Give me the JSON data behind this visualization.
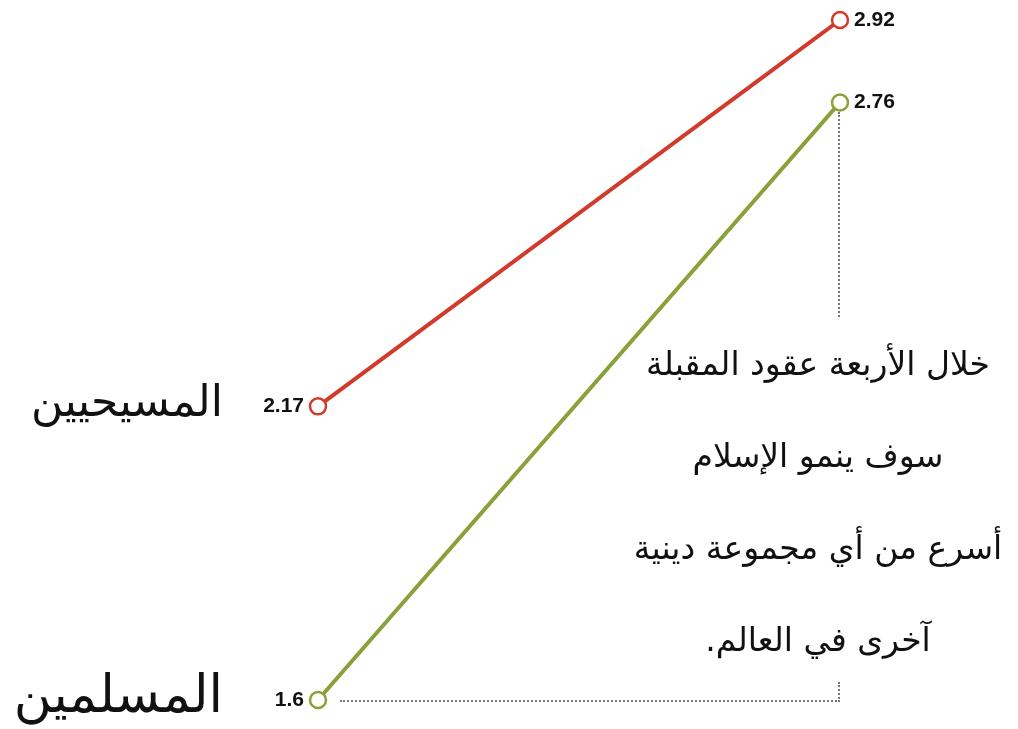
{
  "chart_data": {
    "type": "line",
    "categories": [
      null,
      null
    ],
    "series": [
      {
        "name": "المسيحيين",
        "color": "#d23a2a",
        "values": [
          2.17,
          2.92
        ],
        "value_labels": [
          "2.17",
          "2.92"
        ]
      },
      {
        "name": "المسلمين",
        "color": "#8aa13a",
        "values": [
          1.6,
          2.76
        ],
        "value_labels": [
          "1.6",
          "2.76"
        ]
      }
    ],
    "marker": "circle",
    "line_style": "solid",
    "grid": false,
    "legend": "left",
    "tick_labels": false,
    "annotations": [
      "خلال الأربعة عقود المقبلة\nسوف ينمو الإسلام\nأسرع من أي مجموعة دينية\nآخرى في العالم."
    ]
  }
}
